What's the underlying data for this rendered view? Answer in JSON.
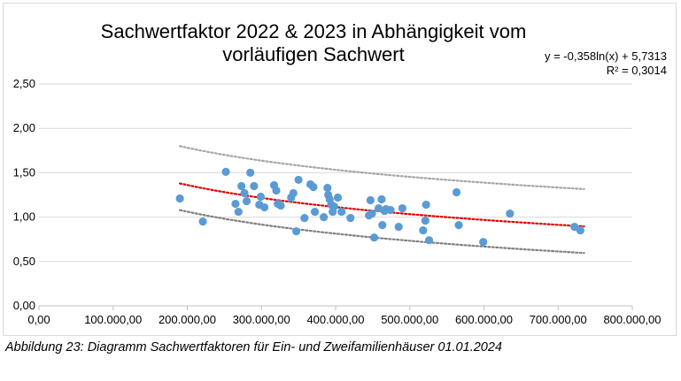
{
  "chart_data": {
    "type": "scatter",
    "title_lines": [
      "Sachwertfaktor 2022 & 2023 in Abhängigkeit vom",
      "vorläufigen Sachwert"
    ],
    "xlabel": "",
    "ylabel": "",
    "xlim": [
      0,
      800000
    ],
    "ylim": [
      0,
      2.5
    ],
    "x_ticks": [
      "0,00",
      "100.000,00",
      "200.000,00",
      "300.000,00",
      "400.000,00",
      "500.000,00",
      "600.000,00",
      "700.000,00",
      "800.000,00"
    ],
    "y_ticks": [
      "0,00",
      "0,50",
      "1,00",
      "1,50",
      "2,00",
      "2,50"
    ],
    "grid": "horizontal",
    "trendline": {
      "equation": "y = -0,358ln(x) + 5,7313",
      "r2": "R² = 0,3014",
      "a": -0.358,
      "b": 5.7313,
      "x_range": [
        190000,
        735000
      ],
      "color": "#e00000",
      "upper_color": "#a6a6a6",
      "lower_color": "#7f7f7f",
      "upper_offset": 0.42,
      "lower_offset": -0.3
    },
    "point_color": "#5b9bd5",
    "points": [
      [
        190000,
        1.21
      ],
      [
        221000,
        0.95
      ],
      [
        252000,
        1.51
      ],
      [
        265000,
        1.15
      ],
      [
        269000,
        1.06
      ],
      [
        273000,
        1.35
      ],
      [
        277000,
        1.27
      ],
      [
        280000,
        1.18
      ],
      [
        285000,
        1.5
      ],
      [
        290000,
        1.35
      ],
      [
        297000,
        1.14
      ],
      [
        299000,
        1.23
      ],
      [
        304000,
        1.11
      ],
      [
        317000,
        1.36
      ],
      [
        320000,
        1.3
      ],
      [
        322000,
        1.15
      ],
      [
        326000,
        1.13
      ],
      [
        340000,
        1.22
      ],
      [
        343000,
        1.27
      ],
      [
        347000,
        0.84
      ],
      [
        350000,
        1.42
      ],
      [
        358000,
        0.99
      ],
      [
        366000,
        1.37
      ],
      [
        370000,
        1.34
      ],
      [
        372000,
        1.06
      ],
      [
        384000,
        1.0
      ],
      [
        389000,
        1.33
      ],
      [
        390000,
        1.25
      ],
      [
        392000,
        1.2
      ],
      [
        394000,
        1.14
      ],
      [
        396000,
        1.06
      ],
      [
        398000,
        1.12
      ],
      [
        403000,
        1.22
      ],
      [
        408000,
        1.06
      ],
      [
        420000,
        0.99
      ],
      [
        445000,
        1.02
      ],
      [
        447000,
        1.19
      ],
      [
        449000,
        1.04
      ],
      [
        452000,
        0.77
      ],
      [
        458000,
        1.1
      ],
      [
        462000,
        1.2
      ],
      [
        463000,
        0.91
      ],
      [
        466000,
        1.07
      ],
      [
        468000,
        1.09
      ],
      [
        474000,
        1.08
      ],
      [
        485000,
        0.89
      ],
      [
        490000,
        1.1
      ],
      [
        518000,
        0.85
      ],
      [
        521000,
        0.96
      ],
      [
        522000,
        1.14
      ],
      [
        526000,
        0.74
      ],
      [
        563000,
        1.28
      ],
      [
        566000,
        0.91
      ],
      [
        599000,
        0.72
      ],
      [
        635000,
        1.04
      ],
      [
        722000,
        0.89
      ],
      [
        730000,
        0.85
      ]
    ]
  },
  "caption": "Abbildung 23: Diagramm Sachwertfaktoren für Ein- und Zweifamilienhäuser 01.01.2024"
}
